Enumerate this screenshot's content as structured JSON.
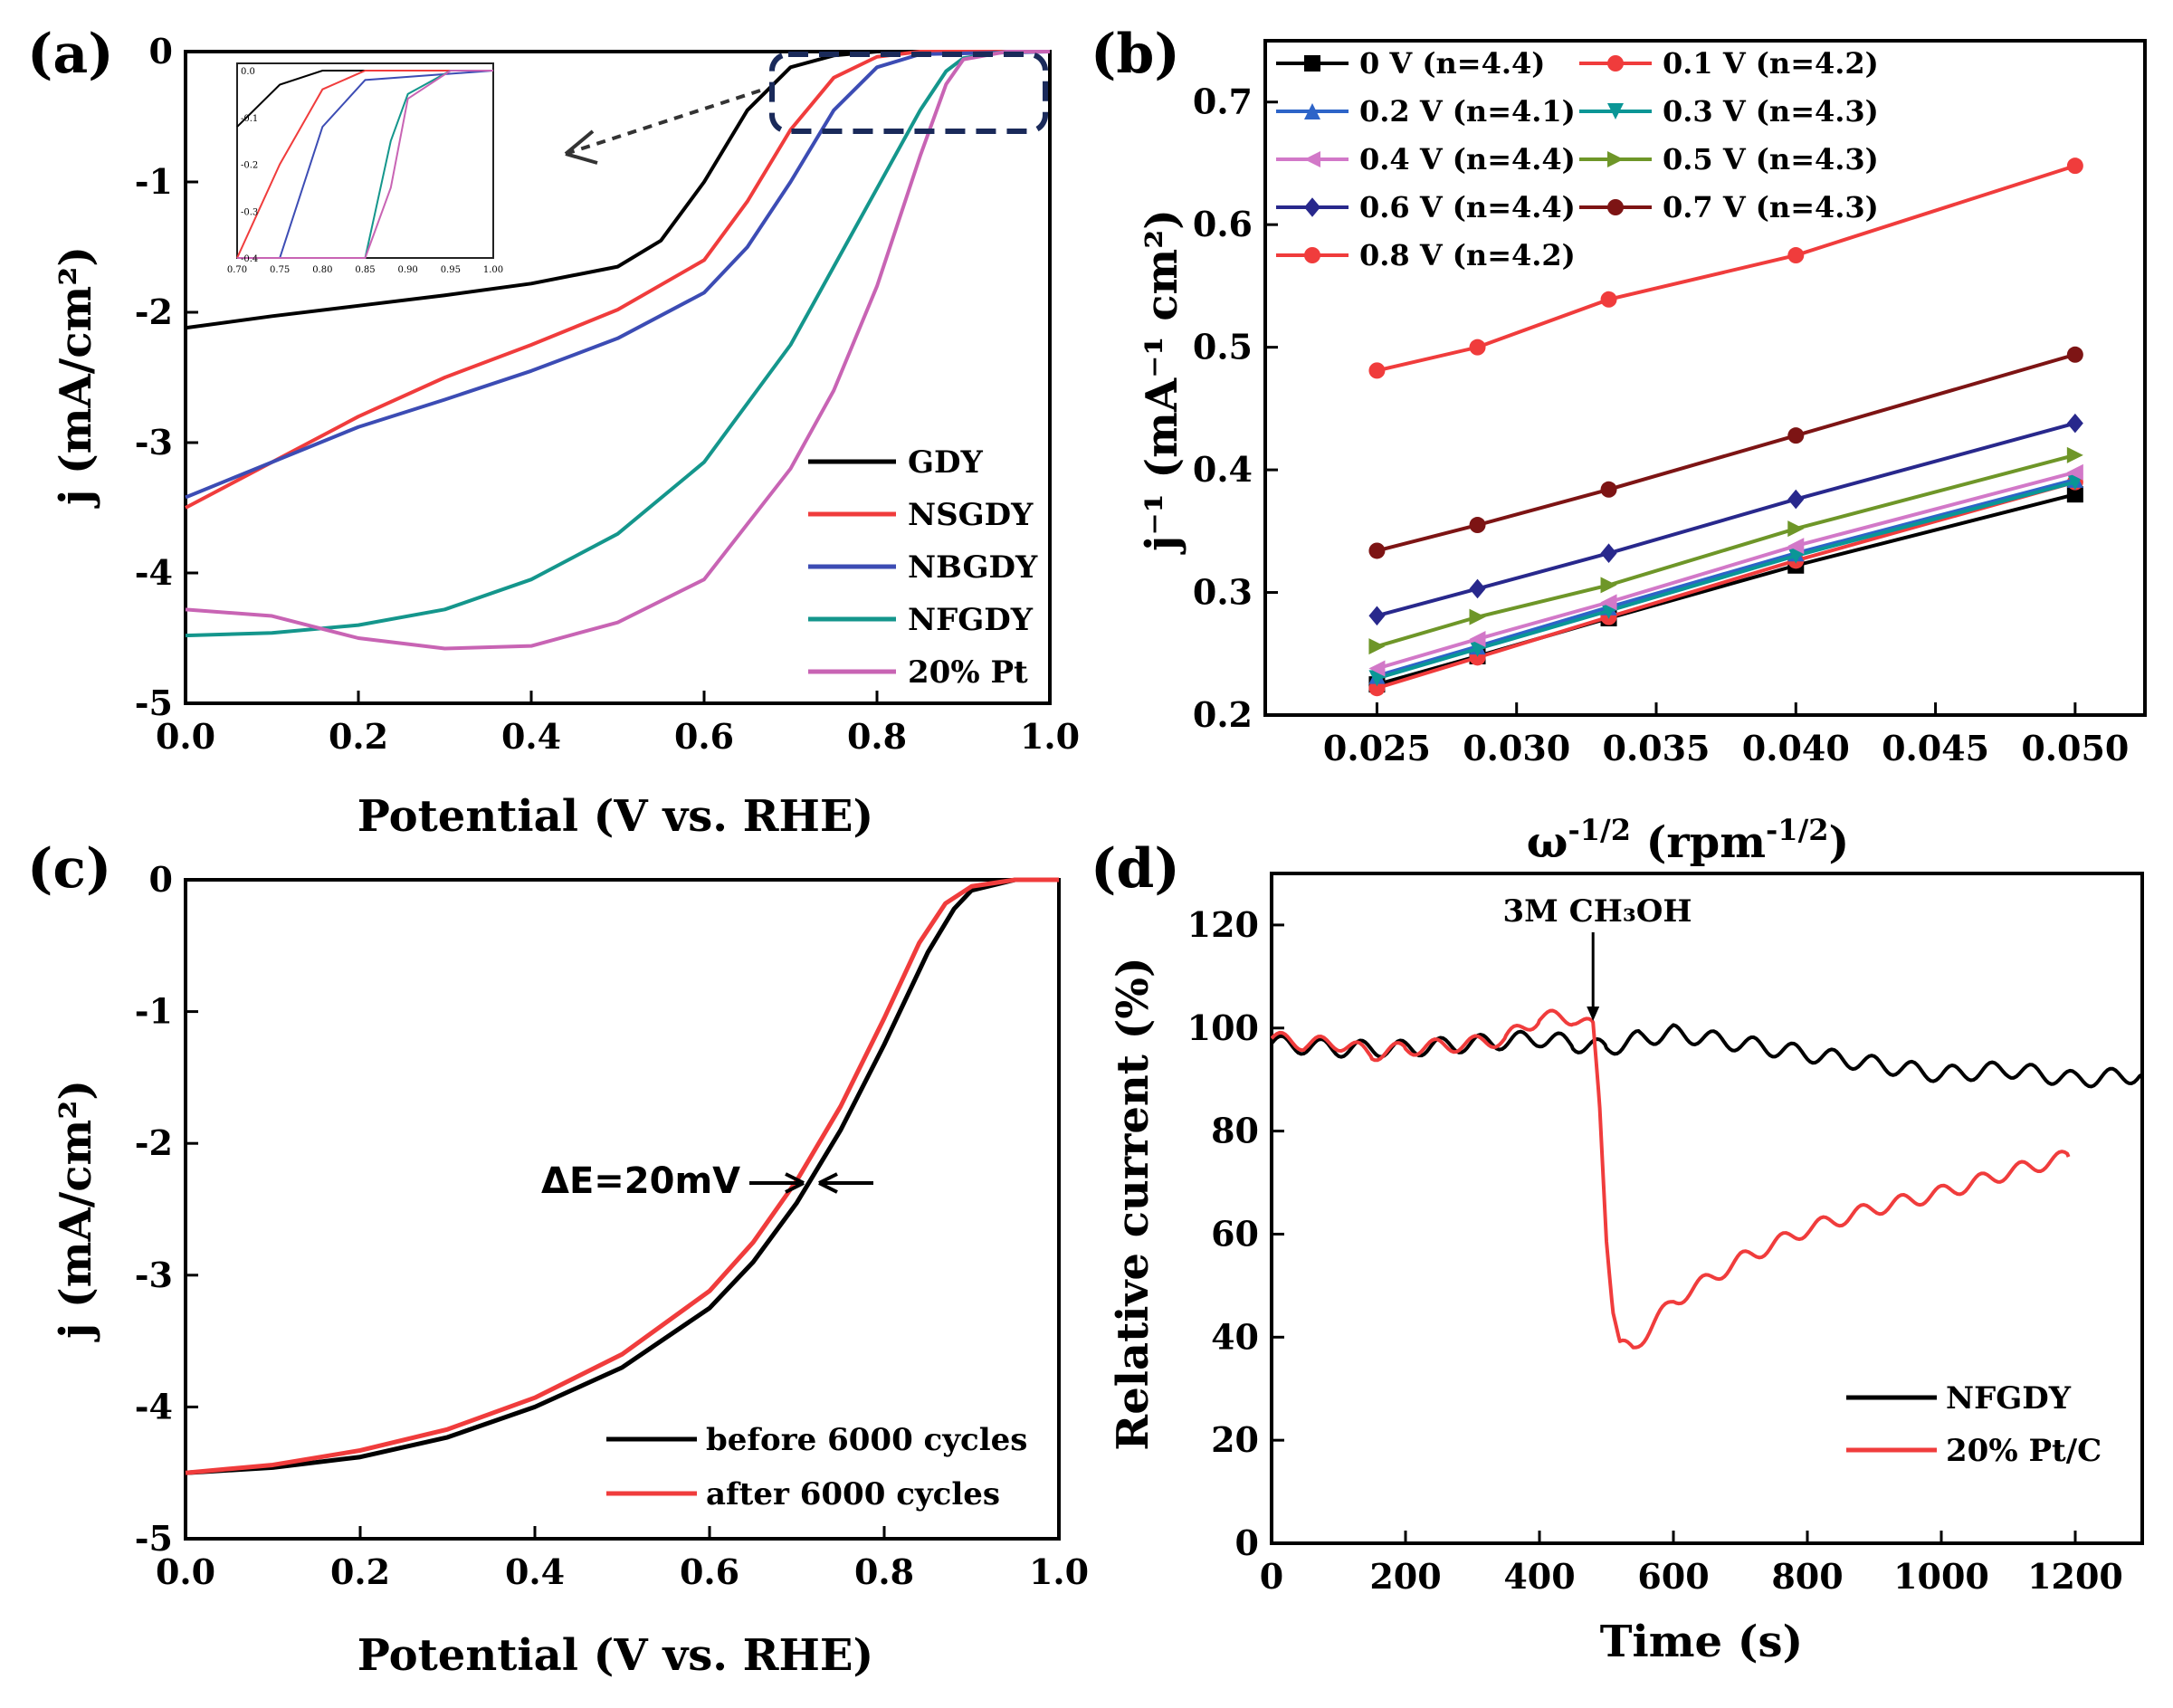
{
  "chart_data": [
    {
      "panel": "(a)",
      "type": "line",
      "xlabel": "Potential (V vs. RHE)",
      "ylabel": "j (mA/cm²)",
      "xlim": [
        0,
        1.0
      ],
      "ylim": [
        -5,
        0
      ],
      "xticks": [
        "0.0",
        "0.2",
        "0.4",
        "0.6",
        "0.8",
        "1.0"
      ],
      "yticks": [
        "0",
        "-1",
        "-2",
        "-3",
        "-4",
        "-5"
      ],
      "legend": [
        "GDY",
        "NSGDY",
        "NBGDY",
        "NFGDY",
        "20% Pt"
      ],
      "inset_xticks": [
        "0.70",
        "0.75",
        "0.80",
        "0.85",
        "0.90",
        "0.95",
        "1.00"
      ],
      "inset_yticks": [
        "0.0",
        "-0.1",
        "-0.2",
        "-0.3",
        "-0.4"
      ],
      "series": [
        {
          "name": "GDY",
          "color": "#000000",
          "x": [
            0,
            0.1,
            0.2,
            0.3,
            0.4,
            0.5,
            0.55,
            0.6,
            0.65,
            0.7,
            0.75,
            0.8,
            1.0
          ],
          "y": [
            -2.12,
            -2.03,
            -1.95,
            -1.87,
            -1.78,
            -1.65,
            -1.45,
            -1.0,
            -0.45,
            -0.12,
            -0.03,
            0,
            0
          ]
        },
        {
          "name": "NSGDY",
          "color": "#f03c3c",
          "x": [
            0,
            0.1,
            0.2,
            0.3,
            0.4,
            0.5,
            0.6,
            0.65,
            0.7,
            0.75,
            0.8,
            0.85,
            1.0
          ],
          "y": [
            -3.5,
            -3.15,
            -2.8,
            -2.5,
            -2.25,
            -1.98,
            -1.6,
            -1.15,
            -0.6,
            -0.2,
            -0.04,
            0,
            0
          ]
        },
        {
          "name": "NBGDY",
          "color": "#3c4cb4",
          "x": [
            0,
            0.1,
            0.2,
            0.3,
            0.4,
            0.5,
            0.6,
            0.65,
            0.7,
            0.75,
            0.8,
            0.85,
            1.0
          ],
          "y": [
            -3.42,
            -3.15,
            -2.88,
            -2.67,
            -2.45,
            -2.2,
            -1.85,
            -1.5,
            -1.0,
            -0.45,
            -0.12,
            -0.02,
            0
          ]
        },
        {
          "name": "NFGDY",
          "color": "#14968c",
          "x": [
            0,
            0.1,
            0.2,
            0.3,
            0.4,
            0.5,
            0.6,
            0.7,
            0.75,
            0.8,
            0.85,
            0.88,
            0.9,
            0.95,
            1.0
          ],
          "y": [
            -4.48,
            -4.46,
            -4.4,
            -4.28,
            -4.05,
            -3.7,
            -3.15,
            -2.25,
            -1.65,
            -1.05,
            -0.45,
            -0.15,
            -0.05,
            0,
            0
          ]
        },
        {
          "name": "20% Pt",
          "color": "#c864b4",
          "x": [
            0,
            0.1,
            0.2,
            0.3,
            0.4,
            0.5,
            0.6,
            0.7,
            0.75,
            0.8,
            0.85,
            0.88,
            0.9,
            0.95,
            1.0
          ],
          "y": [
            -4.28,
            -4.33,
            -4.5,
            -4.58,
            -4.56,
            -4.38,
            -4.05,
            -3.2,
            -2.6,
            -1.8,
            -0.8,
            -0.25,
            -0.06,
            0,
            0
          ]
        }
      ]
    },
    {
      "panel": "(b)",
      "type": "line",
      "xlabel": "ω^-1/2 (rpm^-1/2)",
      "ylabel": "j⁻¹ (mA⁻¹ cm²)",
      "xlim": [
        0.021,
        0.0525
      ],
      "ylim": [
        0.2,
        0.75
      ],
      "xticks": [
        "0.025",
        "0.030",
        "0.035",
        "0.040",
        "0.045",
        "0.050"
      ],
      "yticks": [
        "0.2",
        "0.3",
        "0.4",
        "0.5",
        "0.6",
        "0.7"
      ],
      "x": [
        0.025,
        0.0286,
        0.0333,
        0.04,
        0.05
      ],
      "series": [
        {
          "name": "0 V (n=4.4)",
          "color": "#000000",
          "marker": "square",
          "values": [
            0.225,
            0.248,
            0.279,
            0.322,
            0.38
          ]
        },
        {
          "name": "0.1 V (n=4.2)",
          "color": "#f03c3c",
          "marker": "circle",
          "values": [
            0.222,
            0.247,
            0.28,
            0.326,
            0.39
          ]
        },
        {
          "name": "0.2 V (n=4.1)",
          "color": "#2d64c8",
          "marker": "triangle-up",
          "values": [
            0.232,
            0.256,
            0.288,
            0.332,
            0.392
          ]
        },
        {
          "name": "0.3 V (n=4.3)",
          "color": "#0a9696",
          "marker": "triangle-down",
          "values": [
            0.23,
            0.254,
            0.285,
            0.33,
            0.39
          ]
        },
        {
          "name": "0.4 V (n=4.4)",
          "color": "#d278c8",
          "marker": "triangle-left",
          "values": [
            0.238,
            0.262,
            0.292,
            0.338,
            0.398
          ]
        },
        {
          "name": "0.5 V (n=4.3)",
          "color": "#6e9628",
          "marker": "triangle-right",
          "values": [
            0.256,
            0.28,
            0.306,
            0.352,
            0.412
          ]
        },
        {
          "name": "0.6 V (n=4.4)",
          "color": "#28288c",
          "marker": "diamond",
          "values": [
            0.281,
            0.303,
            0.332,
            0.376,
            0.438
          ]
        },
        {
          "name": "0.7 V (n=4.3)",
          "color": "#7d1414",
          "marker": "circle",
          "values": [
            0.334,
            0.355,
            0.384,
            0.428,
            0.494
          ]
        },
        {
          "name": "0.8 V (n=4.2)",
          "color": "#f03c3c",
          "marker": "circle",
          "values": [
            0.481,
            0.5,
            0.539,
            0.575,
            0.648
          ]
        }
      ]
    },
    {
      "panel": "(c)",
      "type": "line",
      "xlabel": "Potential (V vs. RHE)",
      "ylabel": "j (mA/cm²)",
      "xlim": [
        0,
        1.0
      ],
      "ylim": [
        -5,
        0
      ],
      "xticks": [
        "0.0",
        "0.2",
        "0.4",
        "0.6",
        "0.8",
        "1.0"
      ],
      "yticks": [
        "0",
        "-1",
        "-2",
        "-3",
        "-4",
        "-5"
      ],
      "annotation": "ΔE=20mV",
      "legend": [
        "before 6000 cycles",
        "after 6000 cycles"
      ],
      "series": [
        {
          "name": "before 6000 cycles",
          "color": "#000000",
          "x": [
            0,
            0.1,
            0.2,
            0.3,
            0.4,
            0.5,
            0.6,
            0.65,
            0.7,
            0.75,
            0.8,
            0.85,
            0.88,
            0.9,
            0.95,
            1.0
          ],
          "y": [
            -4.5,
            -4.46,
            -4.38,
            -4.23,
            -4.0,
            -3.7,
            -3.25,
            -2.9,
            -2.45,
            -1.9,
            -1.25,
            -0.55,
            -0.22,
            -0.08,
            0,
            0
          ]
        },
        {
          "name": "after 6000 cycles",
          "color": "#f03c3c",
          "x": [
            0,
            0.1,
            0.2,
            0.3,
            0.4,
            0.5,
            0.6,
            0.65,
            0.7,
            0.75,
            0.8,
            0.84,
            0.87,
            0.9,
            0.95,
            1.0
          ],
          "y": [
            -4.5,
            -4.44,
            -4.33,
            -4.17,
            -3.93,
            -3.6,
            -3.12,
            -2.75,
            -2.28,
            -1.72,
            -1.05,
            -0.48,
            -0.18,
            -0.05,
            0,
            0
          ]
        }
      ]
    },
    {
      "panel": "(d)",
      "type": "line",
      "xlabel": "Time (s)",
      "ylabel": "Relative current (%)",
      "xlim": [
        0,
        1300
      ],
      "ylim": [
        0,
        130
      ],
      "xticks": [
        "0",
        "200",
        "400",
        "600",
        "800",
        "1000",
        "1200"
      ],
      "yticks": [
        "0",
        "20",
        "40",
        "60",
        "80",
        "100",
        "120"
      ],
      "annotation": "3M CH₃OH",
      "annotation_x": 480,
      "legend": [
        "NFGDY",
        "20% Pt/C"
      ],
      "series": [
        {
          "name": "NFGDY",
          "color": "#000000",
          "x": [
            0,
            100,
            200,
            300,
            400,
            450,
            500,
            550,
            600,
            700,
            800,
            900,
            1000,
            1100,
            1200,
            1300
          ],
          "y": [
            97,
            96,
            96,
            97,
            98,
            97,
            96,
            98,
            99,
            97,
            95,
            93,
            91,
            92,
            90,
            91
          ]
        },
        {
          "name": "20% Pt/C",
          "color": "#f03c3c",
          "x": [
            0,
            50,
            100,
            150,
            200,
            300,
            350,
            400,
            450,
            480,
            490,
            500,
            510,
            520,
            540,
            600,
            700,
            800,
            900,
            1000,
            1100,
            1190
          ],
          "y": [
            98,
            97,
            97,
            95,
            96,
            97,
            98,
            102,
            102,
            100,
            85,
            60,
            45,
            38,
            38,
            47,
            55,
            61,
            65,
            68,
            72,
            75
          ]
        }
      ]
    }
  ]
}
